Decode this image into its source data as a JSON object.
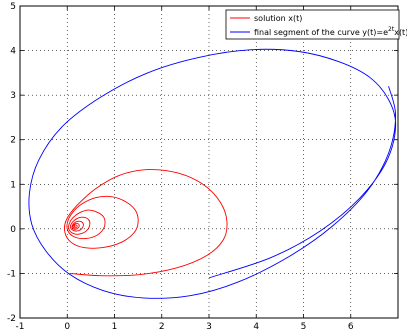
{
  "chart_data": {
    "type": "line",
    "title": "",
    "xlabel": "",
    "ylabel": "",
    "xlim": [
      -1,
      7
    ],
    "ylim": [
      -2,
      5
    ],
    "xticks": [
      -1,
      0,
      1,
      2,
      3,
      4,
      5,
      6
    ],
    "yticks": [
      -2,
      -1,
      0,
      1,
      2,
      3,
      4,
      5
    ],
    "grid": true,
    "legend_position": "top-right",
    "series": [
      {
        "name": "solution x(t)",
        "color": "#ff0000",
        "points": [
          [
            0.05,
            -1.0
          ],
          [
            0.7,
            -1.05
          ],
          [
            1.5,
            -1.03
          ],
          [
            2.3,
            -0.88
          ],
          [
            2.95,
            -0.6
          ],
          [
            3.3,
            -0.25
          ],
          [
            3.38,
            0.15
          ],
          [
            3.25,
            0.58
          ],
          [
            2.9,
            0.98
          ],
          [
            2.35,
            1.25
          ],
          [
            1.7,
            1.33
          ],
          [
            1.1,
            1.2
          ],
          [
            0.6,
            0.9
          ],
          [
            0.2,
            0.52
          ],
          [
            -0.02,
            0.2
          ],
          [
            -0.05,
            -0.08
          ],
          [
            0.08,
            -0.3
          ],
          [
            0.35,
            -0.42
          ],
          [
            0.75,
            -0.42
          ],
          [
            1.15,
            -0.3
          ],
          [
            1.42,
            -0.08
          ],
          [
            1.5,
            0.15
          ],
          [
            1.45,
            0.4
          ],
          [
            1.25,
            0.6
          ],
          [
            0.95,
            0.72
          ],
          [
            0.6,
            0.7
          ],
          [
            0.3,
            0.55
          ],
          [
            0.1,
            0.35
          ],
          [
            0.0,
            0.13
          ],
          [
            0.02,
            -0.06
          ],
          [
            0.15,
            -0.18
          ],
          [
            0.35,
            -0.22
          ],
          [
            0.58,
            -0.17
          ],
          [
            0.74,
            -0.04
          ],
          [
            0.8,
            0.12
          ],
          [
            0.76,
            0.28
          ],
          [
            0.62,
            0.38
          ],
          [
            0.44,
            0.42
          ],
          [
            0.26,
            0.36
          ],
          [
            0.12,
            0.25
          ],
          [
            0.04,
            0.11
          ],
          [
            0.04,
            -0.02
          ],
          [
            0.12,
            -0.1
          ],
          [
            0.24,
            -0.12
          ],
          [
            0.36,
            -0.08
          ],
          [
            0.45,
            0.01
          ],
          [
            0.48,
            0.12
          ],
          [
            0.45,
            0.21
          ],
          [
            0.36,
            0.26
          ],
          [
            0.25,
            0.25
          ],
          [
            0.15,
            0.19
          ],
          [
            0.08,
            0.1
          ],
          [
            0.07,
            0.02
          ],
          [
            0.12,
            -0.03
          ],
          [
            0.2,
            -0.05
          ],
          [
            0.28,
            -0.02
          ],
          [
            0.33,
            0.04
          ],
          [
            0.34,
            0.11
          ],
          [
            0.3,
            0.16
          ],
          [
            0.23,
            0.17
          ],
          [
            0.16,
            0.14
          ],
          [
            0.11,
            0.08
          ],
          [
            0.1,
            0.03
          ],
          [
            0.13,
            0.0
          ],
          [
            0.18,
            -0.01
          ],
          [
            0.22,
            0.01
          ],
          [
            0.25,
            0.05
          ],
          [
            0.25,
            0.09
          ],
          [
            0.22,
            0.12
          ],
          [
            0.18,
            0.12
          ],
          [
            0.14,
            0.09
          ],
          [
            0.12,
            0.06
          ],
          [
            0.13,
            0.03
          ],
          [
            0.16,
            0.02
          ],
          [
            0.19,
            0.03
          ],
          [
            0.21,
            0.06
          ],
          [
            0.2,
            0.08
          ],
          [
            0.17,
            0.09
          ],
          [
            0.15,
            0.07
          ],
          [
            0.15,
            0.05
          ],
          [
            0.17,
            0.05
          ]
        ]
      },
      {
        "name": "final segment of the curve  y(t)=e^{2t}x(t)",
        "color": "#0000ff",
        "points": [
          [
            6.8,
            3.2
          ],
          [
            6.95,
            2.55
          ],
          [
            6.8,
            1.7
          ],
          [
            6.35,
            0.85
          ],
          [
            5.6,
            0.05
          ],
          [
            4.65,
            -0.65
          ],
          [
            3.6,
            -1.2
          ],
          [
            2.6,
            -1.5
          ],
          [
            1.6,
            -1.55
          ],
          [
            0.75,
            -1.38
          ],
          [
            0.05,
            -1.02
          ],
          [
            -0.45,
            -0.5
          ],
          [
            -0.75,
            0.1
          ],
          [
            -0.8,
            0.8
          ],
          [
            -0.6,
            1.55
          ],
          [
            -0.1,
            2.3
          ],
          [
            0.7,
            2.95
          ],
          [
            1.7,
            3.5
          ],
          [
            2.8,
            3.85
          ],
          [
            3.9,
            4.02
          ],
          [
            4.9,
            3.98
          ],
          [
            5.75,
            3.75
          ],
          [
            6.4,
            3.4
          ],
          [
            6.8,
            2.9
          ],
          [
            6.95,
            2.3
          ],
          [
            6.75,
            1.5
          ],
          [
            6.2,
            0.7
          ],
          [
            5.35,
            -0.05
          ],
          [
            4.3,
            -0.65
          ],
          [
            3.0,
            -1.1
          ]
        ]
      }
    ],
    "legend": [
      {
        "label": "solution x(t)",
        "color": "#ff0000"
      },
      {
        "label_prefix": "final segment of the curve  y(t)=e",
        "label_sup": "2t",
        "label_suffix": "x(t)",
        "color": "#0000ff"
      }
    ]
  },
  "styles": {
    "axes_color": "#000000",
    "grid_color": "#000000",
    "background": "#ffffff"
  }
}
